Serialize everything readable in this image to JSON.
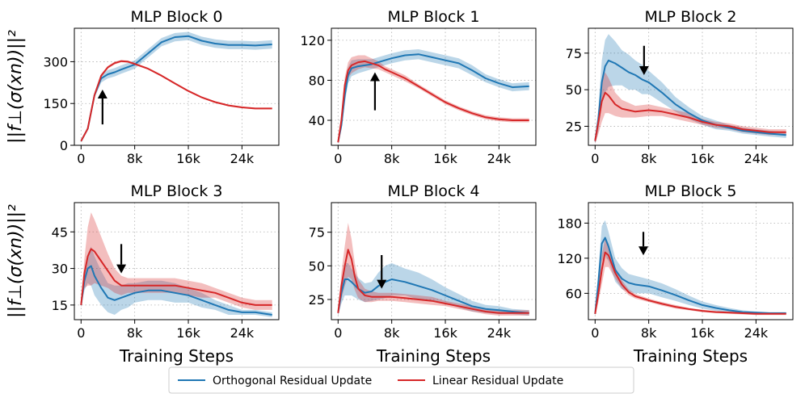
{
  "legend": {
    "items": [
      {
        "label": "Orthogonal Residual Update",
        "color": "#1f77b4"
      },
      {
        "label": "Linear Residual Update",
        "color": "#d62728"
      }
    ]
  },
  "chart_data": [
    {
      "type": "line",
      "title": "MLP Block 0",
      "xlabel": "",
      "ylabel": "||f⊥(σ(xn))||²",
      "xlim": [
        -1000,
        29500
      ],
      "ylim": [
        0,
        420
      ],
      "xticks": [
        {
          "v": 0,
          "label": "0"
        },
        {
          "v": 8000,
          "label": "8k"
        },
        {
          "v": 16000,
          "label": "16k"
        },
        {
          "v": 24000,
          "label": "24k"
        }
      ],
      "yticks": [
        {
          "v": 0,
          "label": "0"
        },
        {
          "v": 150,
          "label": "150"
        },
        {
          "v": 300,
          "label": "300"
        }
      ],
      "grid": true,
      "arrow": {
        "x": 3200,
        "y_from": 75,
        "y_to": 200,
        "direction": "up"
      },
      "series": [
        {
          "name": "Orthogonal Residual Update",
          "color": "#1f77b4",
          "x": [
            0,
            1000,
            2000,
            3000,
            4000,
            5000,
            6000,
            8000,
            10000,
            12000,
            14000,
            16000,
            18000,
            20000,
            22000,
            24000,
            26000,
            28500
          ],
          "y": [
            15,
            60,
            180,
            240,
            255,
            262,
            272,
            290,
            330,
            370,
            388,
            392,
            375,
            365,
            360,
            360,
            358,
            362
          ],
          "band": [
            2,
            5,
            10,
            15,
            15,
            15,
            15,
            15,
            15,
            15,
            15,
            15,
            15,
            15,
            15,
            15,
            15,
            15
          ]
        },
        {
          "name": "Linear Residual Update",
          "color": "#d62728",
          "x": [
            0,
            1000,
            2000,
            3000,
            4000,
            5000,
            6000,
            7000,
            8000,
            10000,
            12000,
            14000,
            16000,
            18000,
            20000,
            22000,
            24000,
            26000,
            28500
          ],
          "y": [
            15,
            60,
            180,
            250,
            280,
            295,
            302,
            300,
            292,
            275,
            250,
            222,
            195,
            172,
            155,
            143,
            136,
            132,
            132
          ],
          "band": [
            2,
            4,
            6,
            6,
            5,
            5,
            4,
            4,
            4,
            3,
            3,
            3,
            3,
            3,
            3,
            3,
            3,
            3,
            3
          ]
        }
      ]
    },
    {
      "type": "line",
      "title": "MLP Block 1",
      "xlabel": "",
      "ylabel": "",
      "xlim": [
        -1000,
        29500
      ],
      "ylim": [
        15,
        132
      ],
      "xticks": [
        {
          "v": 0,
          "label": "0"
        },
        {
          "v": 8000,
          "label": "8k"
        },
        {
          "v": 16000,
          "label": "16k"
        },
        {
          "v": 24000,
          "label": "24k"
        }
      ],
      "yticks": [
        {
          "v": 40,
          "label": "40"
        },
        {
          "v": 80,
          "label": "80"
        },
        {
          "v": 120,
          "label": "120"
        }
      ],
      "grid": true,
      "arrow": {
        "x": 5500,
        "y_from": 50,
        "y_to": 88,
        "direction": "up"
      },
      "series": [
        {
          "name": "Orthogonal Residual Update",
          "color": "#1f77b4",
          "x": [
            0,
            500,
            1000,
            1500,
            2000,
            3000,
            4000,
            5000,
            6000,
            8000,
            10000,
            12000,
            14000,
            16000,
            18000,
            20000,
            22000,
            24000,
            26000,
            28500
          ],
          "y": [
            18,
            35,
            65,
            85,
            92,
            94,
            95,
            96,
            98,
            102,
            105,
            106,
            103,
            100,
            97,
            90,
            82,
            77,
            73,
            74
          ],
          "band": [
            2,
            4,
            8,
            8,
            8,
            7,
            6,
            5,
            5,
            5,
            5,
            5,
            5,
            5,
            5,
            5,
            4,
            4,
            4,
            4
          ]
        },
        {
          "name": "Linear Residual Update",
          "color": "#d62728",
          "x": [
            0,
            500,
            1000,
            1500,
            2000,
            3000,
            4000,
            5000,
            6000,
            7000,
            8000,
            10000,
            12000,
            14000,
            16000,
            18000,
            20000,
            22000,
            24000,
            26000,
            28500
          ],
          "y": [
            18,
            40,
            75,
            90,
            95,
            98,
            99,
            97,
            95,
            91,
            88,
            82,
            74,
            66,
            58,
            52,
            47,
            43,
            41,
            40,
            40
          ],
          "band": [
            2,
            4,
            8,
            8,
            8,
            7,
            6,
            5,
            4,
            3,
            3,
            3,
            2,
            2,
            2,
            2,
            2,
            2,
            2,
            2,
            2
          ]
        }
      ]
    },
    {
      "type": "line",
      "title": "MLP Block 2",
      "xlabel": "",
      "ylabel": "",
      "xlim": [
        -1000,
        29500
      ],
      "ylim": [
        12,
        92
      ],
      "xticks": [
        {
          "v": 0,
          "label": "0"
        },
        {
          "v": 8000,
          "label": "8k"
        },
        {
          "v": 16000,
          "label": "16k"
        },
        {
          "v": 24000,
          "label": "24k"
        }
      ],
      "yticks": [
        {
          "v": 25,
          "label": "25"
        },
        {
          "v": 50,
          "label": "50"
        },
        {
          "v": 75,
          "label": "75"
        }
      ],
      "grid": true,
      "arrow": {
        "x": 7300,
        "y_from": 80,
        "y_to": 60,
        "direction": "down"
      },
      "series": [
        {
          "name": "Orthogonal Residual Update",
          "color": "#1f77b4",
          "x": [
            0,
            500,
            1000,
            1500,
            2000,
            3000,
            4000,
            5000,
            6000,
            7000,
            8000,
            10000,
            12000,
            14000,
            16000,
            18000,
            20000,
            22000,
            24000,
            26000,
            28500
          ],
          "y": [
            15,
            30,
            55,
            66,
            70,
            68,
            65,
            62,
            60,
            57,
            55,
            48,
            40,
            34,
            29,
            26,
            24,
            22,
            21,
            20,
            19
          ],
          "band": [
            2,
            8,
            15,
            18,
            18,
            15,
            12,
            12,
            10,
            10,
            8,
            7,
            5,
            4,
            3,
            3,
            2,
            2,
            2,
            2,
            2
          ]
        },
        {
          "name": "Linear Residual Update",
          "color": "#d62728",
          "x": [
            0,
            500,
            1000,
            1500,
            2000,
            3000,
            4000,
            5000,
            6000,
            8000,
            10000,
            12000,
            14000,
            16000,
            18000,
            20000,
            22000,
            24000,
            26000,
            28500
          ],
          "y": [
            15,
            28,
            42,
            48,
            46,
            40,
            37,
            36,
            35,
            36,
            35,
            33,
            31,
            28,
            26,
            25,
            23,
            22,
            21,
            21
          ],
          "band": [
            2,
            8,
            14,
            14,
            12,
            8,
            6,
            5,
            4,
            4,
            3,
            3,
            3,
            2,
            2,
            2,
            2,
            2,
            2,
            2
          ]
        }
      ]
    },
    {
      "type": "line",
      "title": "MLP Block 3",
      "xlabel": "Training Steps",
      "ylabel": "||f⊥(σ(xn))||²",
      "xlim": [
        -1000,
        29500
      ],
      "ylim": [
        9,
        57
      ],
      "xticks": [
        {
          "v": 0,
          "label": "0"
        },
        {
          "v": 8000,
          "label": "8k"
        },
        {
          "v": 16000,
          "label": "16k"
        },
        {
          "v": 24000,
          "label": "24k"
        }
      ],
      "yticks": [
        {
          "v": 15,
          "label": "15"
        },
        {
          "v": 30,
          "label": "30"
        },
        {
          "v": 45,
          "label": "45"
        }
      ],
      "grid": true,
      "arrow": {
        "x": 6000,
        "y_from": 40,
        "y_to": 28,
        "direction": "down"
      },
      "series": [
        {
          "name": "Orthogonal Residual Update",
          "color": "#1f77b4",
          "x": [
            0,
            500,
            1000,
            1500,
            2000,
            3000,
            4000,
            5000,
            6000,
            7000,
            8000,
            10000,
            12000,
            14000,
            16000,
            18000,
            20000,
            22000,
            24000,
            26000,
            28500
          ],
          "y": [
            15,
            25,
            30,
            31,
            27,
            22,
            18,
            17,
            18,
            19,
            20,
            21,
            21,
            20,
            19,
            17,
            15,
            13,
            12,
            12,
            11
          ],
          "band": [
            1,
            4,
            6,
            8,
            8,
            7,
            6,
            6,
            5,
            5,
            4,
            4,
            4,
            4,
            3,
            3,
            2,
            2,
            1,
            1,
            1
          ]
        },
        {
          "name": "Linear Residual Update",
          "color": "#d62728",
          "x": [
            0,
            500,
            1000,
            1500,
            2000,
            3000,
            4000,
            5000,
            6000,
            7000,
            8000,
            10000,
            12000,
            14000,
            16000,
            18000,
            20000,
            22000,
            24000,
            26000,
            28500
          ],
          "y": [
            15,
            28,
            35,
            38,
            37,
            33,
            29,
            25,
            23,
            23,
            23,
            23,
            23,
            23,
            22,
            21,
            20,
            18,
            16,
            15,
            15
          ],
          "band": [
            1,
            6,
            12,
            15,
            13,
            10,
            7,
            5,
            4,
            3,
            3,
            3,
            3,
            3,
            3,
            3,
            2,
            2,
            2,
            2,
            2
          ]
        }
      ]
    },
    {
      "type": "line",
      "title": "MLP Block 4",
      "xlabel": "Training Steps",
      "ylabel": "",
      "xlim": [
        -1000,
        29500
      ],
      "ylim": [
        10,
        97
      ],
      "xticks": [
        {
          "v": 0,
          "label": "0"
        },
        {
          "v": 8000,
          "label": "8k"
        },
        {
          "v": 16000,
          "label": "16k"
        },
        {
          "v": 24000,
          "label": "24k"
        }
      ],
      "yticks": [
        {
          "v": 25,
          "label": "25"
        },
        {
          "v": 50,
          "label": "50"
        },
        {
          "v": 75,
          "label": "75"
        }
      ],
      "grid": true,
      "arrow": {
        "x": 6500,
        "y_from": 58,
        "y_to": 33,
        "direction": "down"
      },
      "series": [
        {
          "name": "Orthogonal Residual Update",
          "color": "#1f77b4",
          "x": [
            0,
            500,
            1000,
            1500,
            2000,
            3000,
            4000,
            5000,
            6000,
            7000,
            8000,
            10000,
            12000,
            14000,
            16000,
            18000,
            20000,
            22000,
            24000,
            26000,
            28500
          ],
          "y": [
            15,
            30,
            40,
            40,
            38,
            33,
            30,
            31,
            35,
            38,
            40,
            38,
            35,
            32,
            28,
            24,
            20,
            18,
            17,
            16,
            15
          ],
          "band": [
            2,
            8,
            12,
            12,
            10,
            8,
            7,
            7,
            10,
            12,
            12,
            10,
            10,
            8,
            6,
            5,
            4,
            3,
            3,
            2,
            2
          ]
        },
        {
          "name": "Linear Residual Update",
          "color": "#d62728",
          "x": [
            0,
            500,
            1000,
            1500,
            2000,
            2500,
            3000,
            4000,
            5000,
            6000,
            8000,
            10000,
            12000,
            14000,
            16000,
            18000,
            20000,
            22000,
            24000,
            26000,
            28500
          ],
          "y": [
            15,
            35,
            50,
            62,
            55,
            42,
            33,
            28,
            27,
            27,
            27,
            26,
            25,
            24,
            22,
            20,
            18,
            16,
            15,
            15,
            15
          ],
          "band": [
            2,
            10,
            15,
            20,
            15,
            10,
            7,
            5,
            4,
            3,
            3,
            3,
            3,
            3,
            2,
            2,
            2,
            2,
            2,
            2,
            2
          ]
        }
      ]
    },
    {
      "type": "line",
      "title": "MLP Block 5",
      "xlabel": "Training Steps",
      "ylabel": "",
      "xlim": [
        -1000,
        29500
      ],
      "ylim": [
        15,
        215
      ],
      "xticks": [
        {
          "v": 0,
          "label": "0"
        },
        {
          "v": 8000,
          "label": "8k"
        },
        {
          "v": 16000,
          "label": "16k"
        },
        {
          "v": 24000,
          "label": "24k"
        }
      ],
      "yticks": [
        {
          "v": 60,
          "label": "60"
        },
        {
          "v": 120,
          "label": "120"
        },
        {
          "v": 180,
          "label": "180"
        }
      ],
      "grid": true,
      "arrow": {
        "x": 7200,
        "y_from": 165,
        "y_to": 125,
        "direction": "down"
      },
      "series": [
        {
          "name": "Orthogonal Residual Update",
          "color": "#1f77b4",
          "x": [
            0,
            500,
            1000,
            1500,
            2000,
            3000,
            4000,
            5000,
            6000,
            8000,
            10000,
            12000,
            14000,
            16000,
            18000,
            20000,
            22000,
            24000,
            26000,
            28500
          ],
          "y": [
            25,
            80,
            145,
            155,
            140,
            100,
            85,
            78,
            75,
            72,
            65,
            57,
            48,
            40,
            35,
            31,
            28,
            27,
            26,
            26
          ],
          "band": [
            3,
            20,
            30,
            30,
            25,
            20,
            18,
            15,
            15,
            12,
            12,
            10,
            8,
            6,
            5,
            4,
            3,
            2,
            2,
            2
          ]
        },
        {
          "name": "Linear Residual Update",
          "color": "#d62728",
          "x": [
            0,
            500,
            1000,
            1500,
            2000,
            2500,
            3000,
            4000,
            5000,
            6000,
            8000,
            10000,
            12000,
            14000,
            16000,
            18000,
            20000,
            22000,
            24000,
            26000,
            28500
          ],
          "y": [
            25,
            60,
            100,
            130,
            125,
            110,
            95,
            75,
            62,
            55,
            48,
            42,
            37,
            33,
            30,
            28,
            27,
            26,
            25,
            25,
            25
          ],
          "band": [
            3,
            15,
            25,
            25,
            20,
            15,
            10,
            7,
            5,
            4,
            3,
            3,
            3,
            2,
            2,
            2,
            2,
            2,
            2,
            2,
            2
          ]
        }
      ]
    }
  ]
}
